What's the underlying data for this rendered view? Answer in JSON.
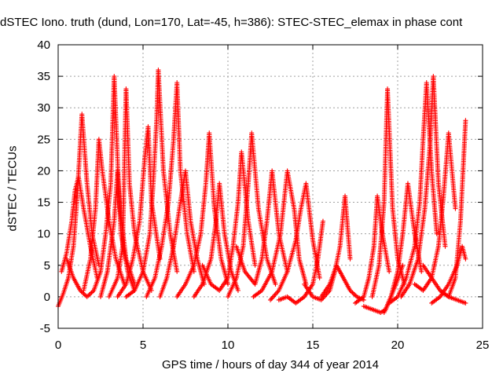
{
  "chart_data": {
    "type": "scatter",
    "title": "dSTEC Iono. truth (dund, Lon=170, Lat=-45, h=386): STEC-STEC_elemax in phase cont",
    "xlabel": "GPS time / hours of day 344 of year 2014",
    "ylabel": "dSTEC  / TECUs",
    "xlim": [
      0,
      25
    ],
    "ylim": [
      -5,
      40
    ],
    "xticks": [
      "0",
      "5",
      "10",
      "15",
      "20",
      "25"
    ],
    "yticks": [
      "-5",
      "0",
      "5",
      "10",
      "15",
      "20",
      "25",
      "30",
      "35",
      "40"
    ],
    "grid": true,
    "marker": "+",
    "color": "#ff0000",
    "series": [
      {
        "x": [
          0.0,
          0.3,
          0.6,
          0.9,
          1.1,
          1.4,
          1.7,
          2.0,
          2.4
        ],
        "y": [
          -1.5,
          0.5,
          3,
          8,
          15,
          29,
          18,
          10,
          5
        ]
      },
      {
        "x": [
          0.2,
          0.5,
          0.8,
          1.0,
          1.2,
          1.5,
          1.9,
          2.3
        ],
        "y": [
          4,
          7,
          12,
          17,
          19,
          14,
          8,
          3
        ]
      },
      {
        "x": [
          0.5,
          0.9,
          1.3,
          1.7,
          2.1,
          2.5,
          2.8,
          3.1,
          3.3,
          3.6,
          4.0,
          4.5
        ],
        "y": [
          6,
          3,
          1,
          0,
          1,
          4,
          10,
          18,
          35,
          15,
          6,
          2
        ]
      },
      {
        "x": [
          1.5,
          1.9,
          2.2,
          2.4,
          2.6,
          3.0,
          3.4,
          3.9
        ],
        "y": [
          1,
          6,
          14,
          25,
          20,
          12,
          6,
          2
        ]
      },
      {
        "x": [
          2.5,
          2.9,
          3.3,
          3.5,
          3.7,
          4.1,
          4.5
        ],
        "y": [
          0,
          4,
          12,
          20,
          10,
          4,
          1
        ]
      },
      {
        "x": [
          3.0,
          3.5,
          3.8,
          4.0,
          4.2,
          4.5,
          5.0,
          5.5
        ],
        "y": [
          0,
          3,
          8,
          33,
          18,
          10,
          4,
          1
        ]
      },
      {
        "x": [
          3.5,
          4.0,
          4.4,
          4.8,
          5.1,
          5.3,
          5.5,
          6.0
        ],
        "y": [
          0,
          2,
          6,
          12,
          22,
          27,
          15,
          6
        ]
      },
      {
        "x": [
          4.0,
          4.5,
          5.0,
          5.4,
          5.6,
          5.8,
          5.9,
          6.2,
          6.6,
          7.0
        ],
        "y": [
          0,
          1,
          4,
          10,
          18,
          28,
          36,
          20,
          10,
          4
        ]
      },
      {
        "x": [
          5.2,
          5.7,
          6.1,
          6.5,
          6.8,
          7.0,
          7.2,
          7.6,
          8.0
        ],
        "y": [
          0,
          3,
          8,
          15,
          25,
          34,
          20,
          10,
          4
        ]
      },
      {
        "x": [
          6.0,
          6.4,
          6.8,
          7.2,
          7.5,
          7.8,
          8.2,
          8.6
        ],
        "y": [
          0,
          3,
          8,
          15,
          20,
          12,
          6,
          2
        ]
      },
      {
        "x": [
          7.0,
          7.5,
          8.0,
          8.4,
          8.7,
          8.9,
          9.2,
          9.6,
          10.0
        ],
        "y": [
          0,
          2,
          5,
          10,
          18,
          26,
          14,
          6,
          2
        ]
      },
      {
        "x": [
          8.0,
          8.5,
          9.0,
          9.3,
          9.5,
          9.8,
          10.2,
          10.6
        ],
        "y": [
          0,
          2,
          6,
          12,
          18,
          10,
          4,
          1
        ]
      },
      {
        "x": [
          8.5,
          9.0,
          9.5,
          10.0,
          10.3,
          10.6,
          10.8,
          11.2,
          11.6
        ],
        "y": [
          5,
          2,
          1,
          3,
          8,
          15,
          23,
          12,
          5
        ]
      },
      {
        "x": [
          10.0,
          10.5,
          10.9,
          11.2,
          11.4,
          11.8,
          12.3,
          12.8
        ],
        "y": [
          0,
          3,
          8,
          18,
          26,
          14,
          6,
          2
        ]
      },
      {
        "x": [
          10.5,
          11.0,
          11.6,
          12.0,
          12.3,
          12.6,
          13.0,
          13.5
        ],
        "y": [
          8,
          4,
          2,
          6,
          12,
          20,
          10,
          4
        ]
      },
      {
        "x": [
          11.5,
          12.0,
          12.6,
          13.1,
          13.5,
          13.9,
          14.2,
          14.6
        ],
        "y": [
          0,
          1,
          4,
          10,
          20,
          14,
          6,
          2
        ]
      },
      {
        "x": [
          12.5,
          13.0,
          13.5,
          14.0,
          14.3,
          14.6,
          15.0,
          15.4
        ],
        "y": [
          -0.5,
          1,
          4,
          9,
          14,
          18,
          9,
          3
        ]
      },
      {
        "x": [
          13.0,
          13.5,
          14.0,
          14.5,
          15.0,
          15.3,
          15.6
        ],
        "y": [
          -0.5,
          0,
          -1,
          0,
          2,
          6,
          12
        ]
      },
      {
        "x": [
          14.5,
          15.0,
          15.5,
          16.0,
          16.3,
          16.6,
          16.9,
          17.2
        ],
        "y": [
          2,
          0,
          -0.5,
          1,
          4,
          8,
          16,
          6
        ]
      },
      {
        "x": [
          15.5,
          16.0,
          16.4,
          16.8,
          17.2,
          17.6,
          18.0
        ],
        "y": [
          0,
          2,
          5,
          3,
          1,
          0,
          -0.5
        ]
      },
      {
        "x": [
          17.5,
          18.0,
          18.3,
          18.6,
          18.8,
          19.1,
          19.5
        ],
        "y": [
          -1,
          0,
          3,
          8,
          16,
          10,
          4
        ]
      },
      {
        "x": [
          18.0,
          18.5,
          19.0,
          19.3,
          19.6,
          19.9,
          20.3
        ],
        "y": [
          -1.5,
          -2,
          -2.5,
          -2,
          0,
          2,
          5
        ]
      },
      {
        "x": [
          18.5,
          18.9,
          19.2,
          19.4,
          19.7,
          20.0,
          20.4
        ],
        "y": [
          0,
          5,
          15,
          33,
          14,
          6,
          2
        ]
      },
      {
        "x": [
          19.2,
          19.6,
          20.0,
          20.3,
          20.6,
          21.0,
          21.4
        ],
        "y": [
          -2.5,
          0,
          4,
          10,
          18,
          10,
          4
        ]
      },
      {
        "x": [
          19.5,
          20.0,
          20.5,
          21.0,
          21.3,
          21.5,
          21.7,
          22.0,
          22.3
        ],
        "y": [
          -1,
          0,
          3,
          8,
          15,
          25,
          34,
          20,
          10
        ]
      },
      {
        "x": [
          20.2,
          20.7,
          21.2,
          21.6,
          21.9,
          22.1,
          22.4,
          22.8
        ],
        "y": [
          0,
          2,
          6,
          14,
          24,
          35,
          18,
          8
        ]
      },
      {
        "x": [
          21.0,
          21.5,
          22.0,
          22.4,
          22.7,
          23.0,
          23.4
        ],
        "y": [
          2,
          1,
          3,
          8,
          16,
          26,
          14
        ]
      },
      {
        "x": [
          21.5,
          22.0,
          22.5,
          23.0,
          23.4,
          23.7,
          24.0
        ],
        "y": [
          5,
          3,
          1,
          0,
          3,
          12,
          28
        ]
      },
      {
        "x": [
          22.0,
          22.5,
          23.0,
          23.5,
          23.8,
          24.0
        ],
        "y": [
          -1,
          0,
          2,
          5,
          8,
          6
        ]
      },
      {
        "x": [
          22.5,
          23.0,
          23.5,
          24.0
        ],
        "y": [
          1,
          0,
          -0.5,
          -1
        ]
      }
    ]
  }
}
